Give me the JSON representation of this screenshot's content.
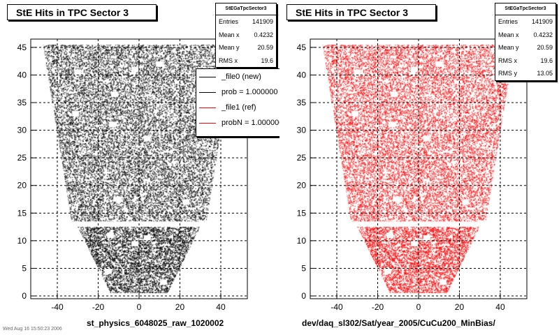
{
  "panels": [
    {
      "title": "StE Hits in TPC Sector 3",
      "stats": {
        "name": "StEGaTpcSector3",
        "rows": [
          {
            "label": "Entries",
            "value": "141909"
          },
          {
            "label": "Mean x",
            "value": "0.4232"
          },
          {
            "label": "Mean y",
            "value": "20.59"
          },
          {
            "label": "RMS x",
            "value": "19.6"
          }
        ]
      },
      "legend": [
        {
          "text": "_file0 (new)",
          "color": "#000000"
        },
        {
          "text": "prob = 1.000000",
          "color": "#000000"
        },
        {
          "text": "_file1 (ref)",
          "color": "#ff0000"
        },
        {
          "text": "probN = 1.000000",
          "color": "#ff0000"
        }
      ],
      "xlabel": "st_physics_6048025_raw_1020002",
      "date_stamp": "Wed Aug 16 15:50:23 2006"
    },
    {
      "title": "StE Hits in TPC Sector 3",
      "stats": {
        "name": "StEGaTpcSector3",
        "rows": [
          {
            "label": "Entries",
            "value": "141909"
          },
          {
            "label": "Mean x",
            "value": "0.4232"
          },
          {
            "label": "Mean y",
            "value": "20.59"
          },
          {
            "label": "RMS x",
            "value": "19.6"
          },
          {
            "label": "RMS y",
            "value": "13.05"
          }
        ]
      },
      "xlabel": "dev/daq_sl302/Sat/year_2005/CuCu200_MinBias/"
    }
  ],
  "chart_data": [
    {
      "type": "scatter",
      "title": "StE Hits in TPC Sector 3",
      "color": "#000000",
      "xlim": [
        -53,
        53
      ],
      "ylim": [
        -0.5,
        46.5
      ],
      "xticks": [
        -40,
        -20,
        0,
        20,
        40
      ],
      "yticks": [
        0,
        5,
        10,
        15,
        20,
        25,
        30,
        35,
        40,
        45
      ],
      "grid": true,
      "legend_position": "top-right",
      "entries": 141909,
      "hit_region": {
        "inner_sector": [
          [
            -14,
            0.5
          ],
          [
            14,
            0.5
          ],
          [
            30,
            12.5
          ],
          [
            -30,
            12.5
          ]
        ],
        "outer_sector": [
          [
            -33,
            13.5
          ],
          [
            33,
            13.5
          ],
          [
            47,
            45.5
          ],
          [
            -47,
            45.5
          ]
        ]
      }
    },
    {
      "type": "scatter",
      "title": "StE Hits in TPC Sector 3",
      "color": "#ff0000",
      "xlim": [
        -53,
        53
      ],
      "ylim": [
        -0.5,
        46.5
      ],
      "xticks": [
        -40,
        -20,
        0,
        20,
        40
      ],
      "yticks": [
        0,
        5,
        10,
        15,
        20,
        25,
        30,
        35,
        40,
        45
      ],
      "grid": true,
      "entries": 141909,
      "hit_region": {
        "inner_sector": [
          [
            -14,
            0.5
          ],
          [
            14,
            0.5
          ],
          [
            30,
            12.5
          ],
          [
            -30,
            12.5
          ]
        ],
        "outer_sector": [
          [
            -33,
            13.5
          ],
          [
            33,
            13.5
          ],
          [
            47,
            45.5
          ],
          [
            -47,
            45.5
          ]
        ]
      }
    }
  ]
}
